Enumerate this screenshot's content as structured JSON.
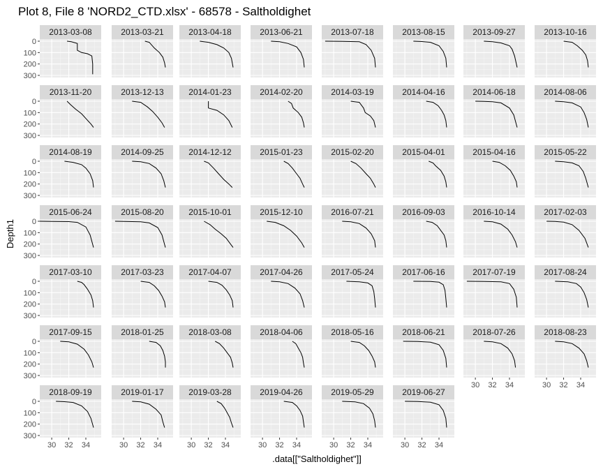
{
  "chart_data": {
    "type": "line",
    "layout": "faceted",
    "title": "Plot 8, File 8 'NORD2_CTD.xlsx' - 68578  -  Saltholdighet",
    "xlabel": ".data[[\"Saltholdighet\"]]",
    "ylabel": "Depth1",
    "xlim": [
      28.6,
      35.8
    ],
    "ylim": [
      0,
      300
    ],
    "y_reversed": true,
    "x_ticks": [
      30,
      32,
      34
    ],
    "x_tick_labels": [
      "30",
      "32",
      "34"
    ],
    "y_ticks": [
      0,
      100,
      200,
      300
    ],
    "y_tick_labels": [
      "0",
      "100",
      "200",
      "300"
    ],
    "colors": {
      "panel_bg": "#ebebeb",
      "strip_bg": "#d9d9d9",
      "grid_major": "#ffffff",
      "line": "#000000",
      "tick_text": "#4d4d4d"
    },
    "facets": [
      {
        "label": "2013-03-08",
        "x": [
          31.8,
          32.3,
          33.0,
          33.0,
          33.5,
          34.2,
          34.7,
          34.8,
          34.8
        ],
        "y": [
          0,
          5,
          20,
          80,
          100,
          110,
          130,
          200,
          290
        ]
      },
      {
        "label": "2013-03-21",
        "x": [
          32.5,
          33.0,
          33.6,
          34.2,
          34.6,
          34.8,
          34.9
        ],
        "y": [
          0,
          10,
          60,
          100,
          140,
          190,
          230
        ]
      },
      {
        "label": "2013-04-18",
        "x": [
          31.0,
          32.0,
          33.0,
          33.8,
          34.4,
          34.7,
          34.9
        ],
        "y": [
          0,
          10,
          30,
          60,
          100,
          150,
          230
        ]
      },
      {
        "label": "2013-06-21",
        "x": [
          31.0,
          32.0,
          33.0,
          34.0,
          34.5,
          34.8,
          34.9
        ],
        "y": [
          0,
          5,
          20,
          50,
          100,
          160,
          230
        ]
      },
      {
        "label": "2013-07-18",
        "x": [
          29.0,
          31.0,
          33.0,
          33.8,
          34.4,
          34.8,
          34.9
        ],
        "y": [
          0,
          2,
          5,
          30,
          80,
          150,
          230
        ]
      },
      {
        "label": "2013-08-15",
        "x": [
          31.0,
          32.0,
          33.0,
          34.0,
          34.5,
          34.8,
          34.9
        ],
        "y": [
          0,
          3,
          10,
          40,
          90,
          150,
          230
        ]
      },
      {
        "label": "2013-09-27",
        "x": [
          31.0,
          32.0,
          33.0,
          34.0,
          34.3,
          34.6,
          34.9
        ],
        "y": [
          0,
          5,
          15,
          40,
          70,
          130,
          230
        ]
      },
      {
        "label": "2013-10-16",
        "x": [
          32.0,
          33.0,
          33.6,
          34.2,
          34.6,
          34.8,
          34.9
        ],
        "y": [
          0,
          10,
          40,
          80,
          120,
          170,
          230
        ]
      },
      {
        "label": "2013-11-20",
        "x": [
          31.8,
          32.2,
          32.8,
          33.5,
          34.1,
          34.6,
          34.9
        ],
        "y": [
          0,
          30,
          70,
          110,
          160,
          200,
          230
        ]
      },
      {
        "label": "2013-12-13",
        "x": [
          31.0,
          32.0,
          32.8,
          33.4,
          34.0,
          34.5,
          34.8
        ],
        "y": [
          0,
          10,
          50,
          90,
          140,
          190,
          230
        ]
      },
      {
        "label": "2014-01-23",
        "x": [
          32.0,
          32.0,
          33.0,
          33.8,
          34.4,
          34.8
        ],
        "y": [
          0,
          60,
          80,
          120,
          170,
          230
        ]
      },
      {
        "label": "2014-02-20",
        "x": [
          33.0,
          33.4,
          33.6,
          34.2,
          34.6,
          34.8,
          34.9
        ],
        "y": [
          0,
          20,
          60,
          100,
          140,
          190,
          230
        ]
      },
      {
        "label": "2014-03-19",
        "x": [
          32.0,
          33.0,
          33.5,
          33.7,
          34.3,
          34.7,
          34.9
        ],
        "y": [
          0,
          10,
          60,
          100,
          130,
          170,
          230
        ]
      },
      {
        "label": "2014-04-16",
        "x": [
          32.5,
          33.3,
          33.9,
          34.3,
          34.6,
          34.8,
          34.9
        ],
        "y": [
          0,
          10,
          40,
          80,
          120,
          170,
          230
        ]
      },
      {
        "label": "2014-06-18",
        "x": [
          30.0,
          31.0,
          32.0,
          33.0,
          34.0,
          34.5,
          34.9
        ],
        "y": [
          0,
          2,
          5,
          15,
          60,
          120,
          230
        ]
      },
      {
        "label": "2014-08-06",
        "x": [
          31.0,
          32.0,
          33.0,
          34.0,
          34.4,
          34.7,
          34.9
        ],
        "y": [
          0,
          5,
          15,
          50,
          100,
          160,
          230
        ]
      },
      {
        "label": "2014-08-19",
        "x": [
          31.5,
          32.5,
          33.5,
          34.0,
          34.5,
          34.8,
          34.9
        ],
        "y": [
          0,
          10,
          30,
          60,
          110,
          170,
          230
        ]
      },
      {
        "label": "2014-09-25",
        "x": [
          31.0,
          32.0,
          33.0,
          33.8,
          34.4,
          34.7,
          34.9
        ],
        "y": [
          0,
          5,
          20,
          60,
          110,
          170,
          230
        ]
      },
      {
        "label": "2014-12-12",
        "x": [
          31.5,
          32.0,
          32.6,
          33.2,
          33.8,
          34.4,
          34.8
        ],
        "y": [
          0,
          15,
          60,
          110,
          160,
          200,
          230
        ]
      },
      {
        "label": "2015-01-23",
        "x": [
          32.5,
          33.0,
          33.5,
          34.0,
          34.4,
          34.7,
          34.9
        ],
        "y": [
          0,
          20,
          60,
          110,
          150,
          200,
          230
        ]
      },
      {
        "label": "2015-02-20",
        "x": [
          32.0,
          32.6,
          33.2,
          33.8,
          34.3,
          34.7,
          34.9
        ],
        "y": [
          0,
          20,
          60,
          110,
          150,
          200,
          230
        ]
      },
      {
        "label": "2015-04-01",
        "x": [
          32.8,
          33.3,
          33.6,
          34.2,
          34.6,
          34.8,
          34.9
        ],
        "y": [
          0,
          15,
          40,
          80,
          130,
          180,
          230
        ]
      },
      {
        "label": "2015-04-16",
        "x": [
          32.0,
          32.8,
          33.5,
          34.1,
          34.5,
          34.8,
          34.9
        ],
        "y": [
          0,
          10,
          40,
          80,
          130,
          180,
          230
        ]
      },
      {
        "label": "2015-05-22",
        "x": [
          31.0,
          32.0,
          33.0,
          33.8,
          34.3,
          34.6,
          34.9
        ],
        "y": [
          0,
          5,
          15,
          40,
          90,
          150,
          230
        ]
      },
      {
        "label": "2015-06-24",
        "x": [
          28.6,
          30.0,
          32.0,
          33.0,
          34.0,
          34.5,
          34.9
        ],
        "y": [
          0,
          1,
          3,
          10,
          50,
          120,
          230
        ]
      },
      {
        "label": "2015-08-20",
        "x": [
          29.0,
          30.0,
          32.0,
          33.0,
          34.0,
          34.5,
          34.9
        ],
        "y": [
          0,
          1,
          4,
          15,
          55,
          120,
          230
        ]
      },
      {
        "label": "2015-10-01",
        "x": [
          31.5,
          32.2,
          32.8,
          33.5,
          34.1,
          34.6,
          34.9
        ],
        "y": [
          0,
          30,
          70,
          110,
          150,
          200,
          230
        ]
      },
      {
        "label": "2015-12-10",
        "x": [
          30.5,
          31.5,
          32.5,
          33.3,
          34.0,
          34.6,
          34.9
        ],
        "y": [
          0,
          10,
          40,
          80,
          130,
          190,
          230
        ]
      },
      {
        "label": "2016-07-21",
        "x": [
          31.0,
          32.0,
          33.0,
          33.8,
          34.4,
          34.8,
          34.9
        ],
        "y": [
          0,
          5,
          20,
          60,
          110,
          170,
          230
        ]
      },
      {
        "label": "2016-09-03",
        "x": [
          32.5,
          33.2,
          33.8,
          34.2,
          34.6,
          34.8,
          34.9
        ],
        "y": [
          0,
          10,
          40,
          80,
          120,
          170,
          230
        ]
      },
      {
        "label": "2016-10-14",
        "x": [
          31.0,
          32.0,
          33.0,
          33.8,
          34.3,
          34.7,
          34.9
        ],
        "y": [
          0,
          5,
          25,
          70,
          120,
          180,
          230
        ]
      },
      {
        "label": "2017-02-03",
        "x": [
          30.0,
          31.0,
          32.0,
          33.0,
          33.8,
          34.5,
          34.9
        ],
        "y": [
          0,
          2,
          8,
          30,
          80,
          150,
          230
        ]
      },
      {
        "label": "2017-03-10",
        "x": [
          33.0,
          33.5,
          33.8,
          34.2,
          34.6,
          34.8,
          34.9
        ],
        "y": [
          0,
          10,
          30,
          70,
          120,
          170,
          230
        ]
      },
      {
        "label": "2017-03-23",
        "x": [
          32.0,
          33.0,
          33.6,
          34.1,
          34.5,
          34.8,
          34.9
        ],
        "y": [
          0,
          10,
          40,
          80,
          130,
          180,
          230
        ]
      },
      {
        "label": "2017-04-07",
        "x": [
          32.0,
          33.0,
          33.6,
          34.1,
          34.5,
          34.8,
          34.9
        ],
        "y": [
          0,
          10,
          35,
          75,
          120,
          170,
          230
        ]
      },
      {
        "label": "2017-04-26",
        "x": [
          31.0,
          32.0,
          33.0,
          33.8,
          34.4,
          34.7,
          34.9
        ],
        "y": [
          0,
          5,
          20,
          60,
          110,
          170,
          230
        ]
      },
      {
        "label": "2017-05-24",
        "x": [
          31.5,
          33.0,
          34.0,
          34.5,
          34.7,
          34.8,
          34.9
        ],
        "y": [
          0,
          5,
          15,
          40,
          90,
          150,
          230
        ]
      },
      {
        "label": "2017-06-16",
        "x": [
          31.0,
          33.0,
          34.0,
          34.5,
          34.7,
          34.8,
          34.9
        ],
        "y": [
          0,
          2,
          8,
          30,
          80,
          150,
          230
        ]
      },
      {
        "label": "2017-07-19",
        "x": [
          29.0,
          31.0,
          33.0,
          34.0,
          34.5,
          34.8,
          34.9
        ],
        "y": [
          0,
          1,
          4,
          20,
          70,
          140,
          230
        ]
      },
      {
        "label": "2017-08-24",
        "x": [
          31.0,
          32.5,
          33.5,
          34.0,
          34.4,
          34.7,
          34.9
        ],
        "y": [
          0,
          5,
          20,
          50,
          100,
          160,
          230
        ]
      },
      {
        "label": "2017-09-15",
        "x": [
          31.0,
          32.0,
          33.0,
          33.8,
          34.3,
          34.7,
          34.9
        ],
        "y": [
          0,
          5,
          25,
          70,
          120,
          180,
          230
        ]
      },
      {
        "label": "2018-01-25",
        "x": [
          33.0,
          33.8,
          34.3,
          34.6,
          34.8,
          34.9,
          34.9
        ],
        "y": [
          0,
          10,
          40,
          80,
          130,
          180,
          230
        ]
      },
      {
        "label": "2018-03-08",
        "x": [
          32.8,
          33.3,
          33.8,
          34.2,
          34.6,
          34.8,
          34.9
        ],
        "y": [
          0,
          20,
          60,
          100,
          140,
          190,
          230
        ]
      },
      {
        "label": "2018-04-06",
        "x": [
          33.5,
          33.9,
          34.2,
          34.5,
          34.7,
          34.8,
          34.9
        ],
        "y": [
          0,
          20,
          60,
          100,
          140,
          190,
          230
        ]
      },
      {
        "label": "2018-05-16",
        "x": [
          32.0,
          33.0,
          33.6,
          34.1,
          34.5,
          34.8,
          34.9
        ],
        "y": [
          0,
          10,
          40,
          80,
          130,
          180,
          230
        ]
      },
      {
        "label": "2018-06-21",
        "x": [
          29.8,
          31.5,
          33.0,
          34.0,
          34.5,
          34.8,
          34.9
        ],
        "y": [
          0,
          2,
          8,
          30,
          80,
          150,
          230
        ]
      },
      {
        "label": "2018-07-26",
        "x": [
          31.0,
          32.0,
          33.0,
          33.8,
          34.3,
          34.6,
          34.7
        ],
        "y": [
          0,
          5,
          20,
          60,
          110,
          170,
          230
        ]
      },
      {
        "label": "2018-08-23",
        "x": [
          31.0,
          32.0,
          33.0,
          33.8,
          34.4,
          34.7,
          34.9
        ],
        "y": [
          0,
          5,
          20,
          60,
          110,
          170,
          230
        ]
      },
      {
        "label": "2018-09-19",
        "x": [
          30.5,
          31.5,
          32.5,
          33.5,
          34.2,
          34.6,
          34.9
        ],
        "y": [
          0,
          3,
          10,
          40,
          90,
          150,
          230
        ]
      },
      {
        "label": "2019-01-17",
        "x": [
          31.0,
          32.0,
          33.0,
          33.8,
          34.4,
          34.6,
          34.8
        ],
        "y": [
          0,
          5,
          25,
          70,
          120,
          180,
          230
        ]
      },
      {
        "label": "2019-03-28",
        "x": [
          33.0,
          33.5,
          33.9,
          34.2,
          34.5,
          34.7,
          34.9
        ],
        "y": [
          0,
          20,
          60,
          100,
          140,
          190,
          230
        ]
      },
      {
        "label": "2019-04-26",
        "x": [
          32.5,
          33.5,
          34.0,
          34.4,
          34.7,
          34.8,
          34.9
        ],
        "y": [
          0,
          10,
          40,
          80,
          130,
          180,
          230
        ]
      },
      {
        "label": "2019-05-29",
        "x": [
          31.0,
          32.5,
          33.5,
          34.2,
          34.6,
          34.8,
          34.9
        ],
        "y": [
          0,
          5,
          20,
          60,
          110,
          170,
          230
        ]
      },
      {
        "label": "2019-06-27",
        "x": [
          30.0,
          31.5,
          33.0,
          34.0,
          34.5,
          34.8,
          34.9
        ],
        "y": [
          0,
          2,
          8,
          30,
          80,
          150,
          230
        ]
      }
    ],
    "columns": 8,
    "x_axis_rows_per_column": [
      6,
      6,
      6,
      6,
      6,
      6,
      5,
      5
    ]
  }
}
